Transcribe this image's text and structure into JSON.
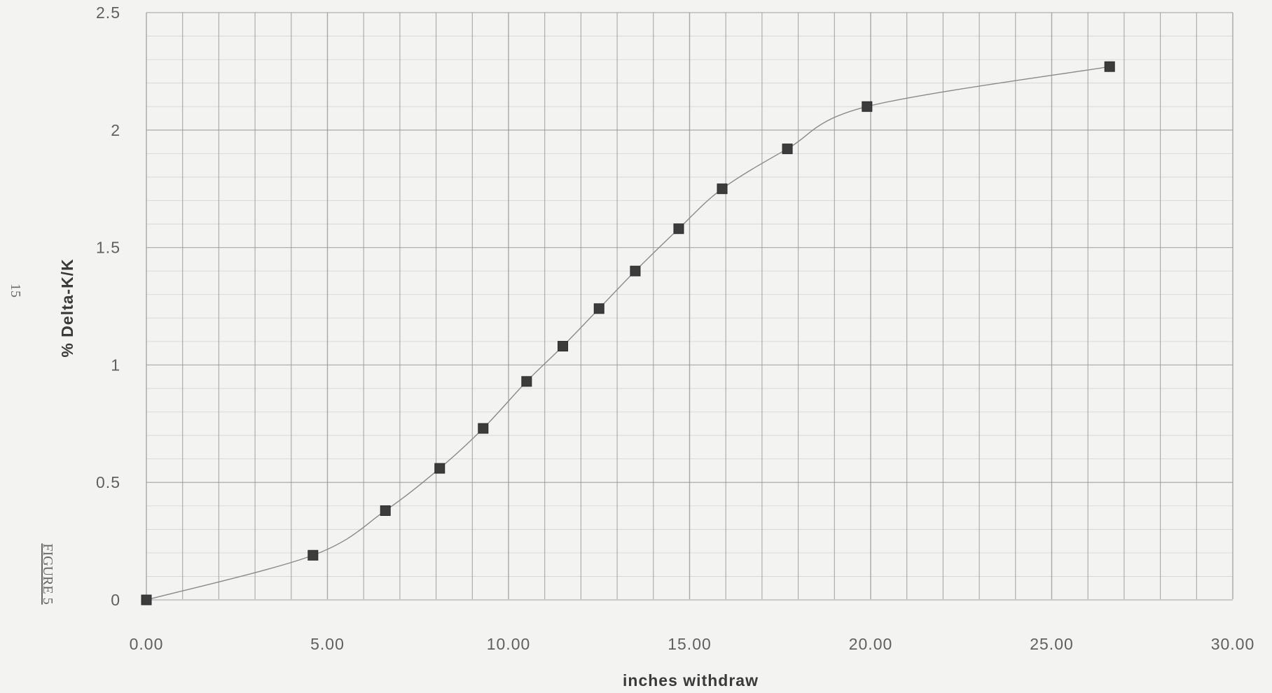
{
  "margin": {
    "page_number": "15",
    "figure_label": "FIGURE 5"
  },
  "chart_data": {
    "type": "scatter",
    "title": "",
    "xlabel": "inches withdraw",
    "ylabel": "% Delta-K/K",
    "xlim": [
      0,
      30
    ],
    "ylim": [
      0,
      2.5
    ],
    "x_ticks": [
      "0.00",
      "5.00",
      "10.00",
      "15.00",
      "20.00",
      "25.00",
      "30.00"
    ],
    "y_ticks": [
      "0",
      "0.5",
      "1",
      "1.5",
      "2",
      "2.5"
    ],
    "grid": true,
    "legend": "none",
    "marker": "square",
    "trend_line": true,
    "series": [
      {
        "x": [
          0.0,
          4.6,
          6.6,
          8.1,
          9.3,
          10.5,
          11.5,
          12.5,
          13.5,
          14.7,
          15.9,
          17.7,
          19.9,
          26.6
        ],
        "y": [
          0.0,
          0.19,
          0.38,
          0.56,
          0.73,
          0.93,
          1.08,
          1.24,
          1.4,
          1.58,
          1.75,
          1.92,
          2.1,
          2.27
        ]
      }
    ],
    "colors": {
      "marker": "#3c3c3c",
      "line": "#8a8a8a",
      "grid": "#9a9a9a"
    }
  }
}
